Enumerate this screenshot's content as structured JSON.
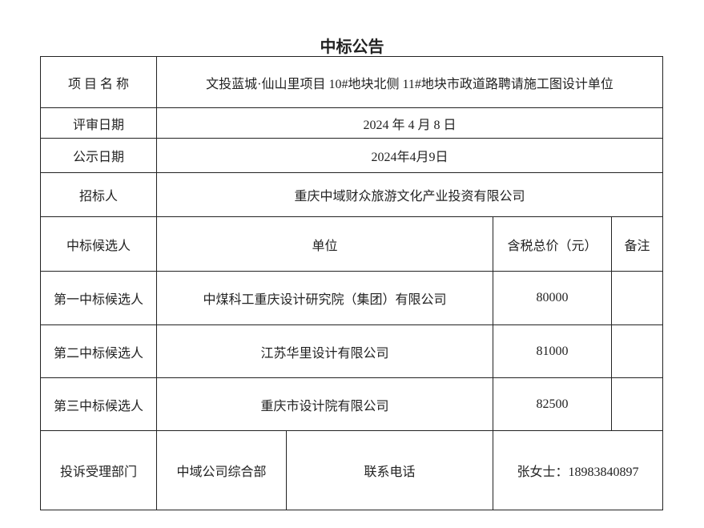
{
  "title": "中标公告",
  "project": {
    "label": "项 目 名 称",
    "value": "文投蓝城·仙山里项目 10#地块北侧 11#地块市政道路聘请施工图设计单位"
  },
  "review_date": {
    "label": "评审日期",
    "value": "2024 年 4 月 8 日"
  },
  "publish_date": {
    "label": "公示日期",
    "value": "2024年4月9日"
  },
  "tenderer": {
    "label": "招标人",
    "value": "重庆中域财众旅游文化产业投资有限公司"
  },
  "header": {
    "candidate": "中标候选人",
    "unit": "单位",
    "price": "含税总价（元）",
    "remark": "备注"
  },
  "candidates": [
    {
      "rank": "第一中标候选人",
      "unit": "中煤科工重庆设计研究院（集团）有限公司",
      "price": "80000",
      "remark": ""
    },
    {
      "rank": "第二中标候选人",
      "unit": "江苏华里设计有限公司",
      "price": "81000",
      "remark": ""
    },
    {
      "rank": "第三中标候选人",
      "unit": "重庆市设计院有限公司",
      "price": "82500",
      "remark": ""
    }
  ],
  "complaint": {
    "label": "投诉受理部门",
    "dept": "中域公司综合部",
    "phone_label": "联系电话",
    "contact": "张女士：18983840897"
  }
}
